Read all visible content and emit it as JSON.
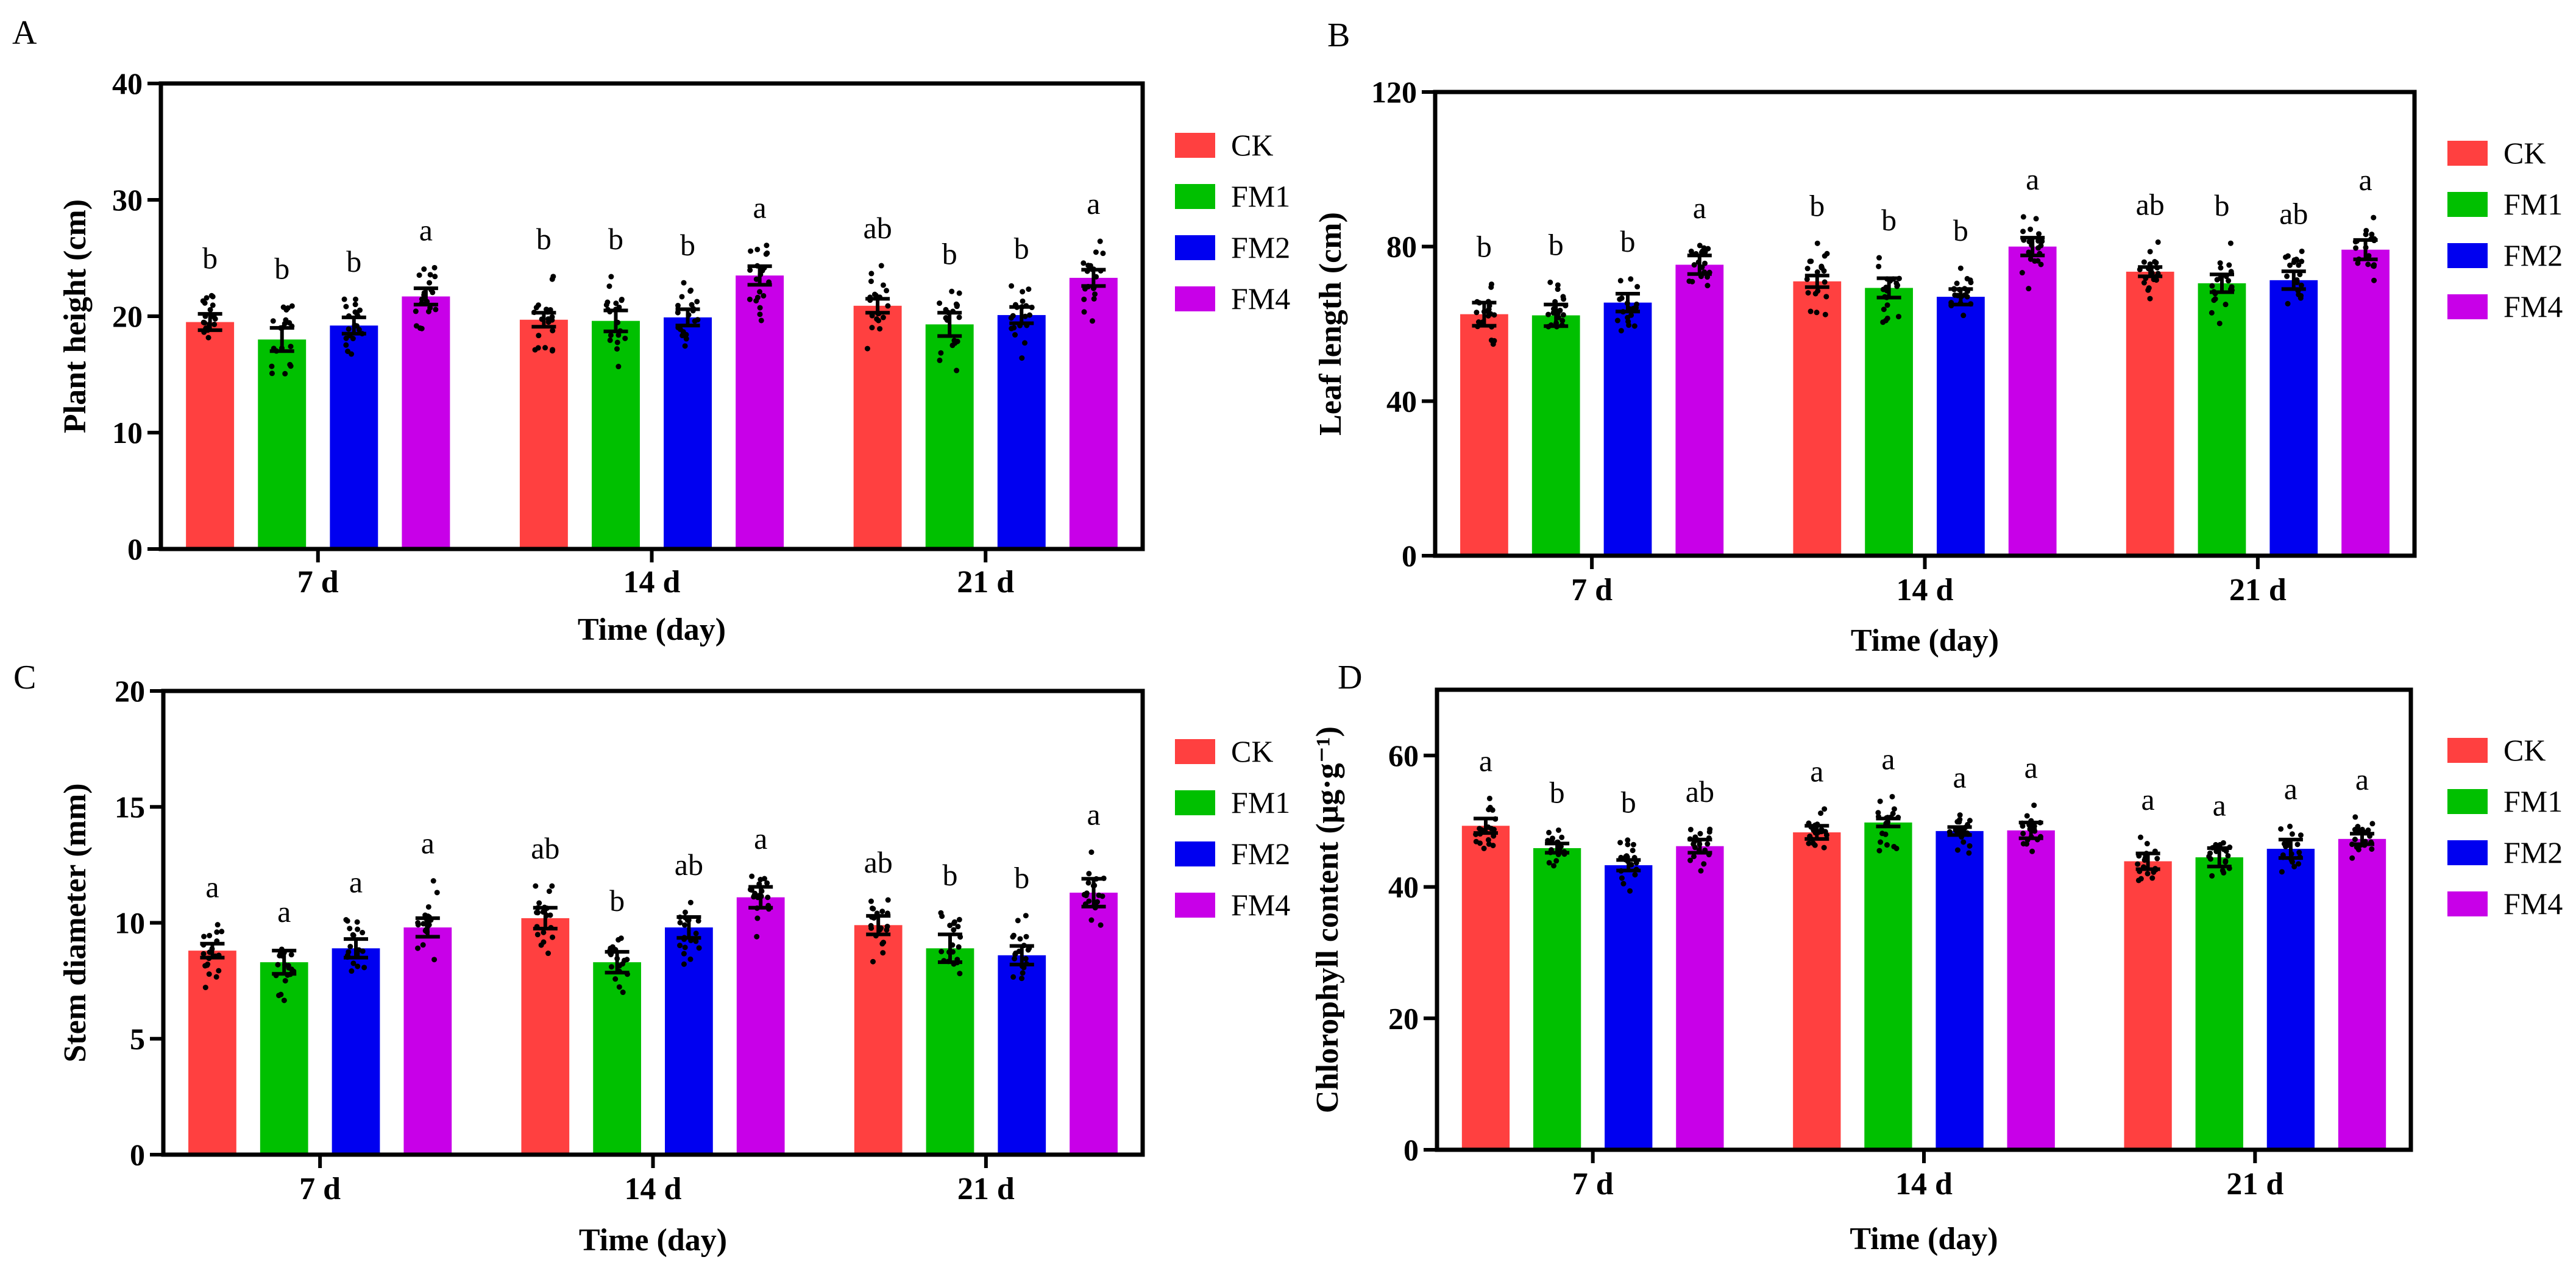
{
  "legend": [
    "CK",
    "FM1",
    "FM2",
    "FM4"
  ],
  "colors": {
    "CK": "#ff4040",
    "FM1": "#00c000",
    "FM2": "#0000f0",
    "FM4": "#c800e8"
  },
  "chart_data": [
    {
      "panel": "A",
      "type": "bar",
      "categories": [
        "7 d",
        "14 d",
        "21 d"
      ],
      "xlabel": "Time (day)",
      "ylabel": "Plant height (cm)",
      "ylim": [
        0,
        40
      ],
      "yticks": [
        0,
        10,
        20,
        30,
        40
      ],
      "series": [
        {
          "name": "CK",
          "values": [
            19.5,
            19.7,
            20.9
          ],
          "sem": [
            0.7,
            0.6,
            0.6
          ],
          "letters": [
            "b",
            "b",
            "ab"
          ]
        },
        {
          "name": "FM1",
          "values": [
            18.0,
            19.6,
            19.3
          ],
          "sem": [
            1.0,
            0.9,
            1.0
          ],
          "letters": [
            "b",
            "b",
            "b"
          ]
        },
        {
          "name": "FM2",
          "values": [
            19.2,
            19.9,
            20.1
          ],
          "sem": [
            0.7,
            0.7,
            0.7
          ],
          "letters": [
            "b",
            "b",
            "b"
          ]
        },
        {
          "name": "FM4",
          "values": [
            21.7,
            23.5,
            23.3
          ],
          "sem": [
            0.7,
            0.8,
            0.7
          ],
          "letters": [
            "a",
            "a",
            "a"
          ]
        }
      ]
    },
    {
      "panel": "B",
      "type": "bar",
      "categories": [
        "7 d",
        "14 d",
        "21 d"
      ],
      "xlabel": "Time (day)",
      "ylabel": "Leaf length (cm)",
      "ylim": [
        0,
        120
      ],
      "yticks": [
        0,
        40,
        80,
        120
      ],
      "series": [
        {
          "name": "CK",
          "values": [
            62.5,
            71.0,
            73.5
          ],
          "sem": [
            3.0,
            1.5,
            1.2
          ],
          "letters": [
            "b",
            "b",
            "ab"
          ]
        },
        {
          "name": "FM1",
          "values": [
            62.2,
            69.3,
            70.5
          ],
          "sem": [
            2.8,
            2.5,
            2.3
          ],
          "letters": [
            "b",
            "b",
            "b"
          ]
        },
        {
          "name": "FM2",
          "values": [
            65.5,
            67.0,
            71.3
          ],
          "sem": [
            2.3,
            2.0,
            2.3
          ],
          "letters": [
            "b",
            "b",
            "ab"
          ]
        },
        {
          "name": "FM4",
          "values": [
            75.3,
            80.0,
            79.2
          ],
          "sem": [
            2.4,
            2.3,
            2.5
          ],
          "letters": [
            "a",
            "a",
            "a"
          ]
        }
      ]
    },
    {
      "panel": "C",
      "type": "bar",
      "categories": [
        "7 d",
        "14 d",
        "21 d"
      ],
      "xlabel": "Time (day)",
      "ylabel": "Stem diameter (mm)",
      "ylim": [
        0,
        20
      ],
      "yticks": [
        0,
        5,
        10,
        15,
        20
      ],
      "series": [
        {
          "name": "CK",
          "values": [
            8.8,
            10.2,
            9.9
          ],
          "sem": [
            0.3,
            0.45,
            0.4
          ],
          "letters": [
            "a",
            "ab",
            "ab"
          ]
        },
        {
          "name": "FM1",
          "values": [
            8.3,
            8.3,
            8.9
          ],
          "sem": [
            0.5,
            0.45,
            0.6
          ],
          "letters": [
            "a",
            "b",
            "b"
          ]
        },
        {
          "name": "FM2",
          "values": [
            8.9,
            9.8,
            8.6
          ],
          "sem": [
            0.4,
            0.45,
            0.4
          ],
          "letters": [
            "a",
            "ab",
            "b"
          ]
        },
        {
          "name": "FM4",
          "values": [
            9.8,
            11.1,
            11.3
          ],
          "sem": [
            0.4,
            0.45,
            0.6
          ],
          "letters": [
            "a",
            "a",
            "a"
          ]
        }
      ]
    },
    {
      "panel": "D",
      "type": "bar",
      "categories": [
        "7 d",
        "14 d",
        "21 d"
      ],
      "xlabel": "Time (day)",
      "ylabel": "Chlorophyll content (μg·g⁻¹)",
      "ylim": [
        0,
        70
      ],
      "yticks": [
        0,
        20,
        40,
        60
      ],
      "series": [
        {
          "name": "CK",
          "values": [
            49.3,
            48.3,
            43.9
          ],
          "sem": [
            1.1,
            1.0,
            1.2
          ],
          "letters": [
            "a",
            "a",
            "a"
          ]
        },
        {
          "name": "FM1",
          "values": [
            45.9,
            49.8,
            44.5
          ],
          "sem": [
            0.7,
            0.6,
            1.4
          ],
          "letters": [
            "b",
            "a",
            "a"
          ]
        },
        {
          "name": "FM2",
          "values": [
            43.3,
            48.5,
            45.8
          ],
          "sem": [
            0.8,
            0.6,
            1.4
          ],
          "letters": [
            "b",
            "a",
            "a"
          ]
        },
        {
          "name": "FM4",
          "values": [
            46.2,
            48.6,
            47.3
          ],
          "sem": [
            1.0,
            1.2,
            0.8
          ],
          "letters": [
            "ab",
            "a",
            "a"
          ]
        }
      ]
    }
  ]
}
